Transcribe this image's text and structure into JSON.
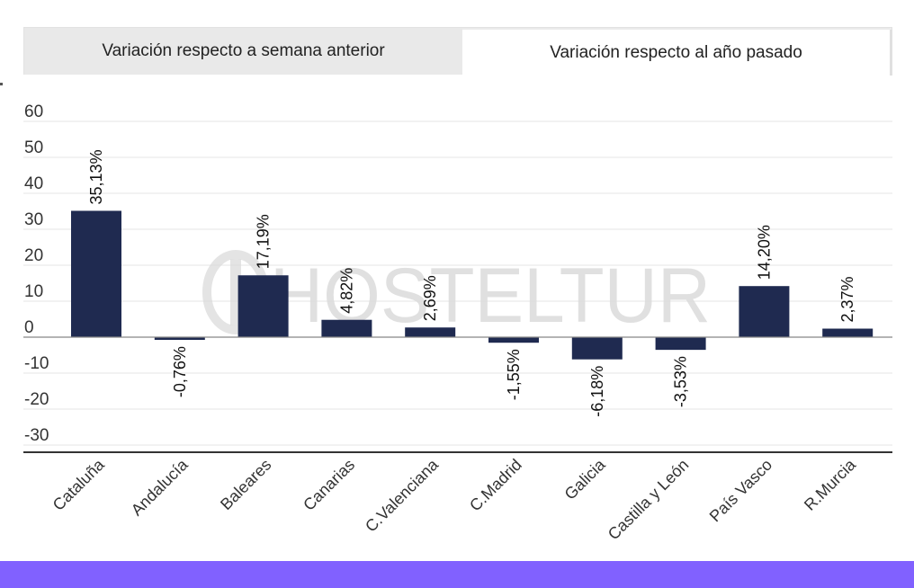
{
  "tabs": [
    {
      "label": "Variación respecto a semana anterior",
      "active": false
    },
    {
      "label": "Variación respecto al año pasado",
      "active": true
    }
  ],
  "watermark": "HOSTELTUR",
  "colors": {
    "bar": "#1f2a50",
    "grid": "#e6e6e6",
    "axis": "#333333",
    "footer": "#8161ff"
  },
  "chart_data": {
    "type": "bar",
    "categories": [
      "Cataluña",
      "Andalucía",
      "Baleares",
      "Canarias",
      "C.Valenciana",
      "C.Madrid",
      "Galicia",
      "Castilla y León",
      "País Vasco",
      "R.Murcia"
    ],
    "values": [
      35.13,
      -0.76,
      17.19,
      4.82,
      2.69,
      -1.55,
      -6.18,
      -3.53,
      14.2,
      2.37
    ],
    "data_labels": [
      "35,13%",
      "-0,76%",
      "17,19%",
      "4,82%",
      "2,69%",
      "-1,55%",
      "-6,18%",
      "-3,53%",
      "14,20%",
      "2,37%"
    ],
    "yticks": [
      60,
      50,
      40,
      30,
      20,
      10,
      0,
      -10,
      -20,
      -30
    ],
    "ylim": [
      -32,
      63
    ],
    "title": "",
    "xlabel": "",
    "ylabel": "",
    "grid": true
  }
}
